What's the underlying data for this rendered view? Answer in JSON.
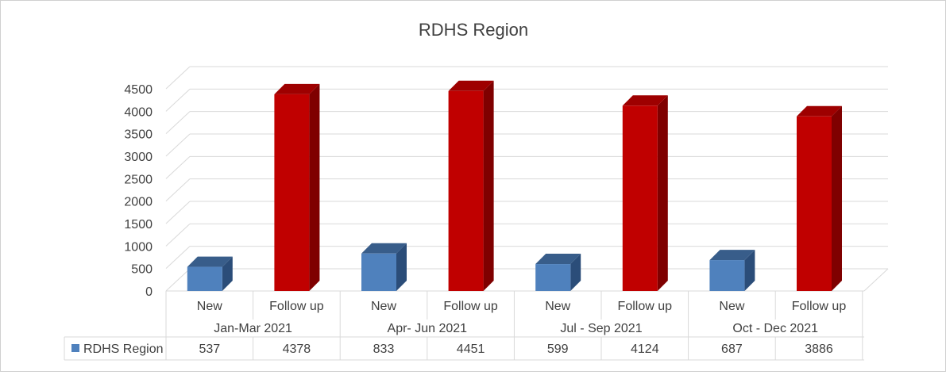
{
  "chart_data": {
    "type": "bar",
    "title": "RDHS Region",
    "groups": [
      {
        "label": "Jan-Mar 2021",
        "categories": [
          "New",
          "Follow up"
        ]
      },
      {
        "label": "Apr- Jun 2021",
        "categories": [
          "New",
          "Follow up"
        ]
      },
      {
        "label": "Jul - Sep 2021",
        "categories": [
          "New",
          "Follow up"
        ]
      },
      {
        "label": "Oct - Dec 2021",
        "categories": [
          "New",
          "Follow up"
        ]
      }
    ],
    "series": [
      {
        "name": "RDHS Region",
        "values": [
          537,
          4378,
          833,
          4451,
          599,
          4124,
          687,
          3886
        ]
      }
    ],
    "value_labels": [
      "537",
      "4378",
      "833",
      "4451",
      "599",
      "4124",
      "687",
      "3886"
    ],
    "yticks": [
      "0",
      "500",
      "1000",
      "1500",
      "2000",
      "2500",
      "3000",
      "3500",
      "4000",
      "4500"
    ],
    "ylim": [
      0,
      4500
    ],
    "grid": true,
    "legend": "data-table",
    "colors": {
      "new_front": "#4f81bd",
      "new_side": "#2b4d79",
      "new_top": "#385d8a",
      "follow_front": "#c00000",
      "follow_side": "#7f0000",
      "follow_top": "#9e0000",
      "grid": "#d9d9d9",
      "text": "#404040"
    }
  }
}
